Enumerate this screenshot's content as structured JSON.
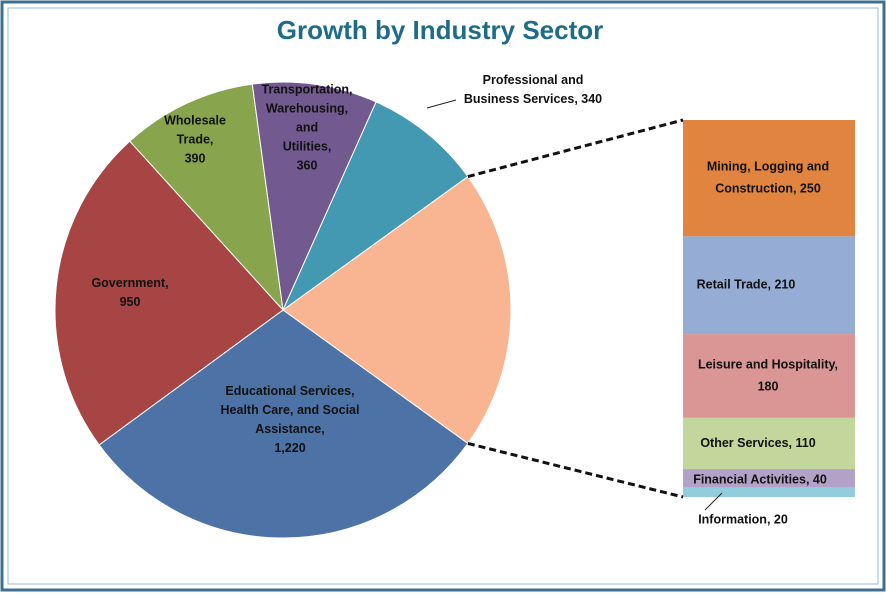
{
  "chart_data": {
    "type": "pie-of-bar",
    "title": "Growth by Industry Sector",
    "pie": {
      "values": [
        810,
        1220,
        950,
        390,
        360,
        340
      ],
      "colors": [
        "#f9b591",
        "#4d72a6",
        "#a64543",
        "#88a44c",
        "#72598f",
        "#4299b1"
      ],
      "labels": [
        null,
        [
          "Educational Services,",
          "Health Care, and Social",
          "Assistance,",
          "1,220"
        ],
        [
          "Government,",
          "950"
        ],
        [
          "Wholesale",
          "Trade,",
          "390"
        ],
        [
          "Transportation,",
          "Warehousing,",
          "and",
          "Utilities,",
          "360"
        ],
        [
          "Professional and",
          "Business Services, 340"
        ]
      ]
    },
    "bar": {
      "values": [
        250,
        210,
        180,
        110,
        40,
        20
      ],
      "colors": [
        "#e0843f",
        "#95acd4",
        "#d99695",
        "#c3d69c",
        "#b3a2c7",
        "#93cddd"
      ],
      "labels": [
        [
          "Mining, Logging and",
          "Construction, 250"
        ],
        [
          "Retail Trade, 210"
        ],
        [
          "Leisure and Hospitality,",
          "180"
        ],
        [
          "Other Services, 110"
        ],
        [
          "Financial Activities, 40"
        ],
        [
          "Information, 20"
        ]
      ]
    }
  }
}
